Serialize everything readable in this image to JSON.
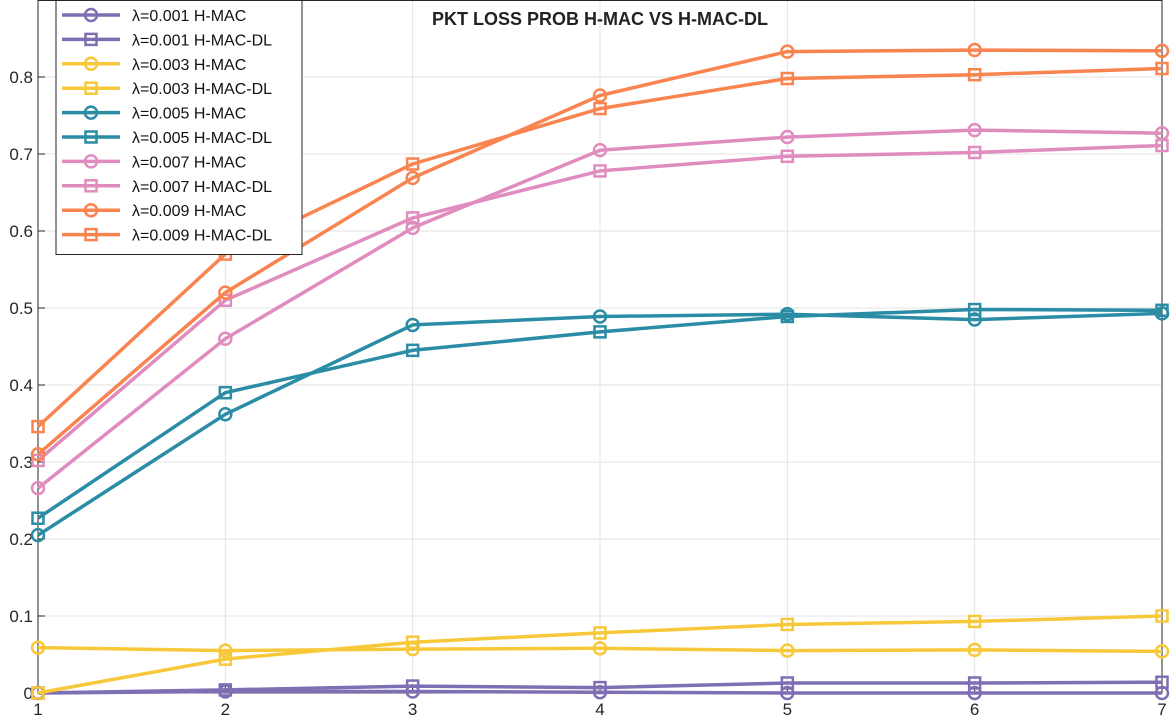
{
  "chart_data": {
    "type": "line",
    "title": "PKT LOSS PROB  H-MAC  VS  H-MAC-DL",
    "xlabel": "",
    "ylabel": "",
    "x": [
      1,
      2,
      3,
      4,
      5,
      6,
      7
    ],
    "xlim": [
      1,
      7
    ],
    "ylim": [
      0,
      0.9
    ],
    "x_ticks": [
      "1",
      "2",
      "3",
      "4",
      "5",
      "6",
      "7"
    ],
    "y_ticks": [
      "0",
      "0.1",
      "0.2",
      "0.3",
      "0.4",
      "0.5",
      "0.6",
      "0.7",
      "0.8"
    ],
    "grid": true,
    "legend_position": "top-left",
    "series": [
      {
        "name": "λ=0.001 H-MAC",
        "color": "#7e6eb4",
        "marker": "circle",
        "values": [
          0.0,
          0.002,
          0.002,
          0.001,
          0.0,
          0.0,
          0.0
        ]
      },
      {
        "name": "λ=0.001 H-MAC-DL",
        "color": "#7e6eb4",
        "marker": "square",
        "values": [
          0.0,
          0.004,
          0.009,
          0.007,
          0.013,
          0.013,
          0.014
        ]
      },
      {
        "name": "λ=0.003 H-MAC",
        "color": "#f7c93a",
        "marker": "circle",
        "values": [
          0.059,
          0.055,
          0.057,
          0.058,
          0.055,
          0.056,
          0.054
        ]
      },
      {
        "name": "λ=0.003 H-MAC-DL",
        "color": "#f7c93a",
        "marker": "square",
        "values": [
          0.0,
          0.044,
          0.066,
          0.078,
          0.089,
          0.093,
          0.1
        ]
      },
      {
        "name": "λ=0.005 H-MAC",
        "color": "#2b8ca5",
        "marker": "circle",
        "values": [
          0.205,
          0.362,
          0.478,
          0.489,
          0.492,
          0.485,
          0.493
        ]
      },
      {
        "name": "λ=0.005 H-MAC-DL",
        "color": "#2b8ca5",
        "marker": "square",
        "values": [
          0.227,
          0.39,
          0.445,
          0.469,
          0.489,
          0.498,
          0.497
        ]
      },
      {
        "name": "λ=0.007 H-MAC",
        "color": "#e08cbf",
        "marker": "circle",
        "values": [
          0.266,
          0.46,
          0.604,
          0.705,
          0.722,
          0.731,
          0.727
        ]
      },
      {
        "name": "λ=0.007 H-MAC-DL",
        "color": "#e08cbf",
        "marker": "square",
        "values": [
          0.302,
          0.51,
          0.617,
          0.678,
          0.697,
          0.702,
          0.711
        ]
      },
      {
        "name": "λ=0.009 H-MAC",
        "color": "#f98450",
        "marker": "circle",
        "values": [
          0.31,
          0.52,
          0.669,
          0.776,
          0.833,
          0.835,
          0.834
        ]
      },
      {
        "name": "λ=0.009 H-MAC-DL",
        "color": "#f98450",
        "marker": "square",
        "values": [
          0.346,
          0.57,
          0.687,
          0.759,
          0.798,
          0.803,
          0.811
        ]
      }
    ]
  }
}
